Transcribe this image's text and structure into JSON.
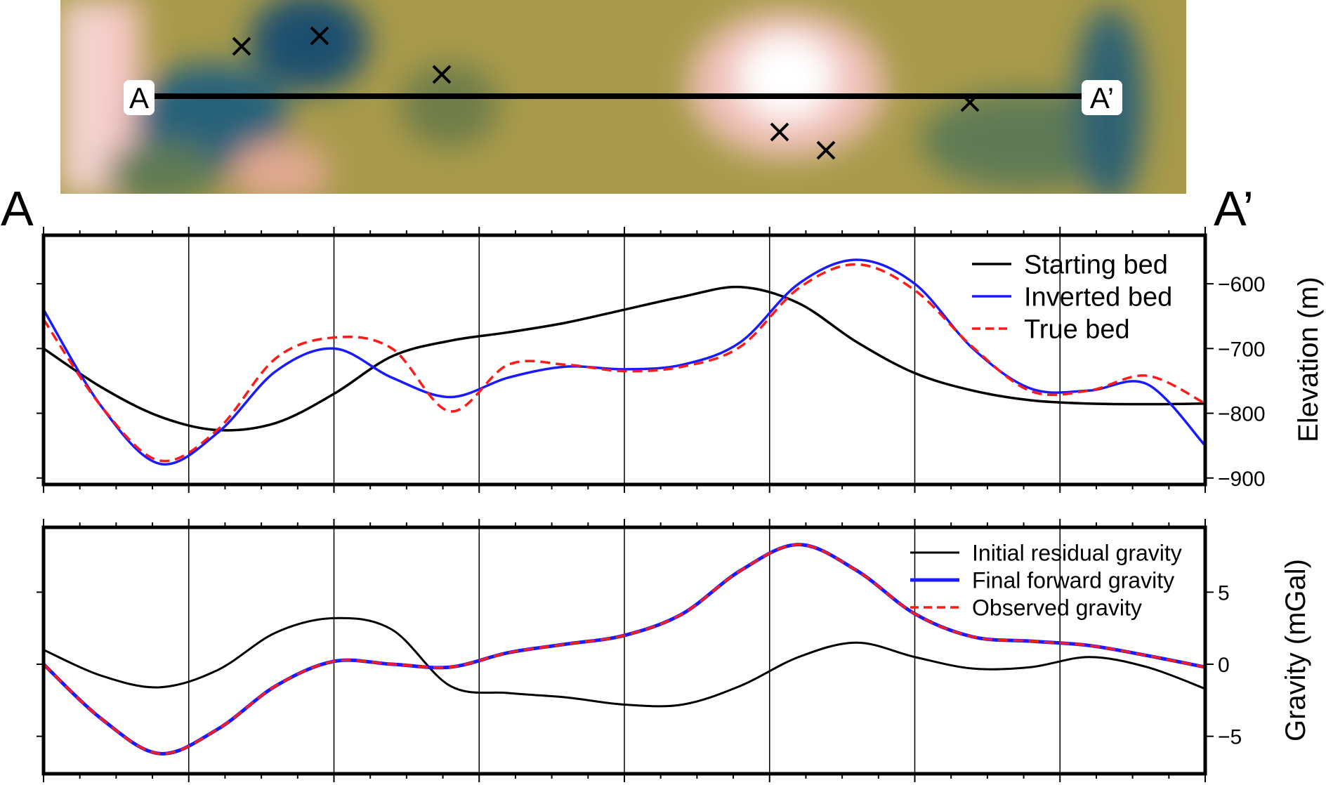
{
  "map": {
    "start_label": "A",
    "end_label": "A’",
    "colors": {
      "low": "#1f5a6e",
      "mid": "#a89a4a",
      "high": "#ffffff",
      "pink": "#f0b5b0"
    }
  },
  "profile_labels": {
    "start": "A",
    "end": "A’"
  },
  "chart_data": [
    {
      "type": "line",
      "title": "",
      "xlabel": "",
      "ylabel": "Elevation (m)",
      "x": [
        0,
        0.05,
        0.1,
        0.15,
        0.2,
        0.25,
        0.3,
        0.35,
        0.4,
        0.45,
        0.5,
        0.55,
        0.6,
        0.65,
        0.7,
        0.75,
        0.8,
        0.85,
        0.9,
        0.95,
        1.0
      ],
      "ylim": [
        -910,
        -525
      ],
      "yticks": [
        -600,
        -700,
        -800,
        -900
      ],
      "ytick_labels": [
        "−600",
        "−700",
        "−800",
        "−900"
      ],
      "grid": true,
      "legend": "top-right",
      "series": [
        {
          "name": "Starting bed",
          "color": "#000000",
          "style": "solid",
          "values": [
            -700,
            -760,
            -805,
            -826,
            -815,
            -770,
            -712,
            -688,
            -675,
            -660,
            -640,
            -620,
            -605,
            -630,
            -690,
            -738,
            -765,
            -780,
            -785,
            -786,
            -785
          ]
        },
        {
          "name": "Inverted bed",
          "color": "#1a1aff",
          "style": "solid",
          "values": [
            -640,
            -790,
            -878,
            -830,
            -735,
            -700,
            -745,
            -775,
            -745,
            -728,
            -732,
            -725,
            -690,
            -600,
            -563,
            -600,
            -700,
            -762,
            -765,
            -755,
            -850
          ]
        },
        {
          "name": "True bed",
          "color": "#ff1a1a",
          "style": "dashed",
          "values": [
            -655,
            -790,
            -873,
            -825,
            -715,
            -683,
            -700,
            -797,
            -725,
            -725,
            -735,
            -728,
            -697,
            -607,
            -570,
            -610,
            -698,
            -766,
            -765,
            -742,
            -785
          ]
        }
      ]
    },
    {
      "type": "line",
      "title": "",
      "xlabel": "",
      "ylabel": "Gravity (mGal)",
      "x": [
        0,
        0.05,
        0.1,
        0.15,
        0.2,
        0.25,
        0.3,
        0.35,
        0.4,
        0.45,
        0.5,
        0.55,
        0.6,
        0.65,
        0.7,
        0.75,
        0.8,
        0.85,
        0.9,
        0.95,
        1.0
      ],
      "ylim": [
        -7.6,
        9.5
      ],
      "yticks": [
        5,
        0,
        -5
      ],
      "ytick_labels": [
        "5",
        "0",
        "−5"
      ],
      "grid": true,
      "legend": "top-right",
      "series": [
        {
          "name": "Initial residual gravity",
          "color": "#000000",
          "style": "solid",
          "values": [
            1.0,
            -0.8,
            -1.6,
            -0.4,
            2.2,
            3.2,
            2.4,
            -1.5,
            -2.0,
            -2.3,
            -2.8,
            -2.8,
            -1.5,
            0.5,
            1.5,
            0.5,
            -0.3,
            -0.2,
            0.5,
            -0.2,
            -1.7
          ]
        },
        {
          "name": "Final forward gravity",
          "color": "#1a1aff",
          "style": "solid",
          "values": [
            0.0,
            -3.8,
            -6.2,
            -4.5,
            -1.5,
            0.2,
            0.0,
            -0.2,
            0.8,
            1.4,
            2.0,
            3.5,
            6.5,
            8.3,
            6.5,
            3.5,
            1.9,
            1.6,
            1.3,
            0.6,
            -0.2
          ]
        },
        {
          "name": "Observed gravity",
          "color": "#ff1a1a",
          "style": "dashed",
          "values": [
            0.0,
            -3.8,
            -6.2,
            -4.5,
            -1.5,
            0.2,
            0.0,
            -0.2,
            0.8,
            1.4,
            2.0,
            3.5,
            6.5,
            8.3,
            6.5,
            3.5,
            1.9,
            1.6,
            1.3,
            0.6,
            -0.2
          ]
        }
      ]
    }
  ]
}
